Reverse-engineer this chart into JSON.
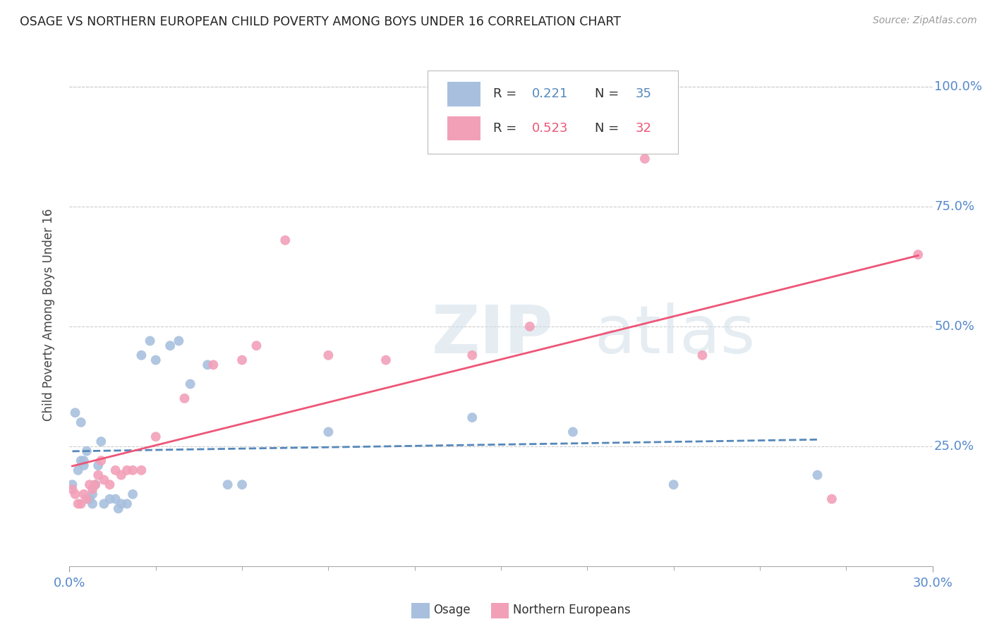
{
  "title": "OSAGE VS NORTHERN EUROPEAN CHILD POVERTY AMONG BOYS UNDER 16 CORRELATION CHART",
  "source": "Source: ZipAtlas.com",
  "ylabel": "Child Poverty Among Boys Under 16",
  "xlim": [
    0.0,
    0.3
  ],
  "ylim": [
    0.0,
    1.05
  ],
  "osage_color": "#a8c0de",
  "northern_color": "#f2a0b8",
  "osage_line_color": "#5588bb",
  "northern_line_color": "#ee5577",
  "r_osage": "0.221",
  "n_osage": "35",
  "r_northern": "0.523",
  "n_northern": "32",
  "background_color": "#ffffff",
  "grid_color": "#cccccc",
  "osage_x": [
    0.001,
    0.002,
    0.003,
    0.004,
    0.004,
    0.005,
    0.005,
    0.006,
    0.007,
    0.008,
    0.008,
    0.009,
    0.01,
    0.011,
    0.012,
    0.014,
    0.016,
    0.017,
    0.018,
    0.02,
    0.022,
    0.025,
    0.028,
    0.03,
    0.035,
    0.038,
    0.042,
    0.048,
    0.055,
    0.06,
    0.09,
    0.14,
    0.175,
    0.21,
    0.26
  ],
  "osage_y": [
    0.17,
    0.32,
    0.2,
    0.22,
    0.3,
    0.21,
    0.22,
    0.24,
    0.14,
    0.13,
    0.15,
    0.17,
    0.21,
    0.26,
    0.13,
    0.14,
    0.14,
    0.12,
    0.13,
    0.13,
    0.15,
    0.44,
    0.47,
    0.43,
    0.46,
    0.47,
    0.38,
    0.42,
    0.17,
    0.17,
    0.28,
    0.31,
    0.28,
    0.17,
    0.19
  ],
  "northern_x": [
    0.001,
    0.002,
    0.003,
    0.004,
    0.005,
    0.006,
    0.007,
    0.008,
    0.009,
    0.01,
    0.011,
    0.012,
    0.014,
    0.016,
    0.018,
    0.02,
    0.022,
    0.025,
    0.03,
    0.04,
    0.05,
    0.06,
    0.065,
    0.075,
    0.09,
    0.11,
    0.14,
    0.16,
    0.2,
    0.22,
    0.265,
    0.295
  ],
  "northern_y": [
    0.16,
    0.15,
    0.13,
    0.13,
    0.15,
    0.14,
    0.17,
    0.16,
    0.17,
    0.19,
    0.22,
    0.18,
    0.17,
    0.2,
    0.19,
    0.2,
    0.2,
    0.2,
    0.27,
    0.35,
    0.42,
    0.43,
    0.46,
    0.68,
    0.44,
    0.43,
    0.44,
    0.5,
    0.85,
    0.44,
    0.14,
    0.65
  ]
}
